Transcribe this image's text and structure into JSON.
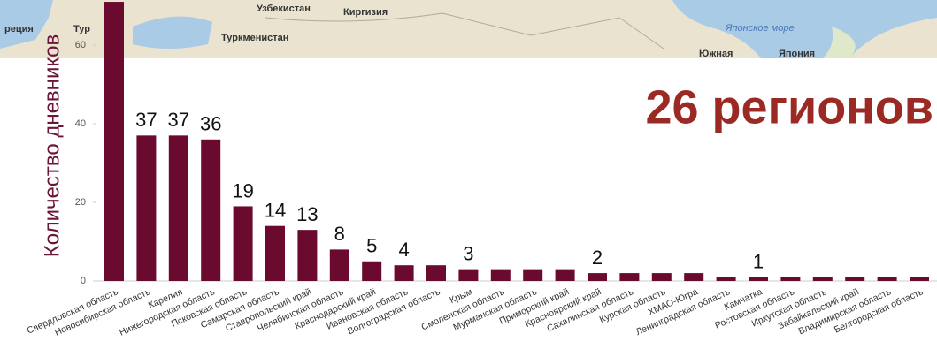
{
  "chart_data": {
    "type": "bar",
    "title": "26 регионов",
    "y_label": "Количество дневников",
    "categories": [
      "Свердловская область",
      "Новосибирская область",
      "Карелия",
      "Нижегородская область",
      "Псковская область",
      "Самарская область",
      "Ставропольский край",
      "Челябинская область",
      "Краснодарский край",
      "Ивановская область",
      "Волгоградская область",
      "Крым",
      "Смоленская область",
      "Мурманская область",
      "Приморский край",
      "Красноярский край",
      "Сахалинская область",
      "Курская область",
      "ХМАО-Югра",
      "Ленинградская область",
      "Камчатка",
      "Ростовская область",
      "Иркутская область",
      "Забайкальский край",
      "Владимирская область",
      "Белгородская область"
    ],
    "values": [
      71,
      37,
      37,
      36,
      19,
      14,
      13,
      8,
      5,
      4,
      4,
      3,
      3,
      3,
      3,
      2,
      2,
      2,
      2,
      1,
      1,
      1,
      1,
      1,
      1,
      1
    ],
    "value_labels": [
      null,
      "37",
      "37",
      "36",
      "19",
      "14",
      "13",
      "8",
      "5",
      "4",
      null,
      "3",
      null,
      null,
      null,
      "2",
      null,
      null,
      null,
      null,
      "1",
      null,
      null,
      null,
      null,
      null
    ],
    "color": "#6a0a2e",
    "ylim": [
      0,
      72
    ],
    "yticks": [
      0,
      20,
      40,
      60
    ]
  },
  "map_labels": [
    "реция",
    "Тур",
    "Узбекистан",
    "Киргизия",
    "Туркменистан",
    "Японское море",
    "Южная",
    "Япония"
  ]
}
